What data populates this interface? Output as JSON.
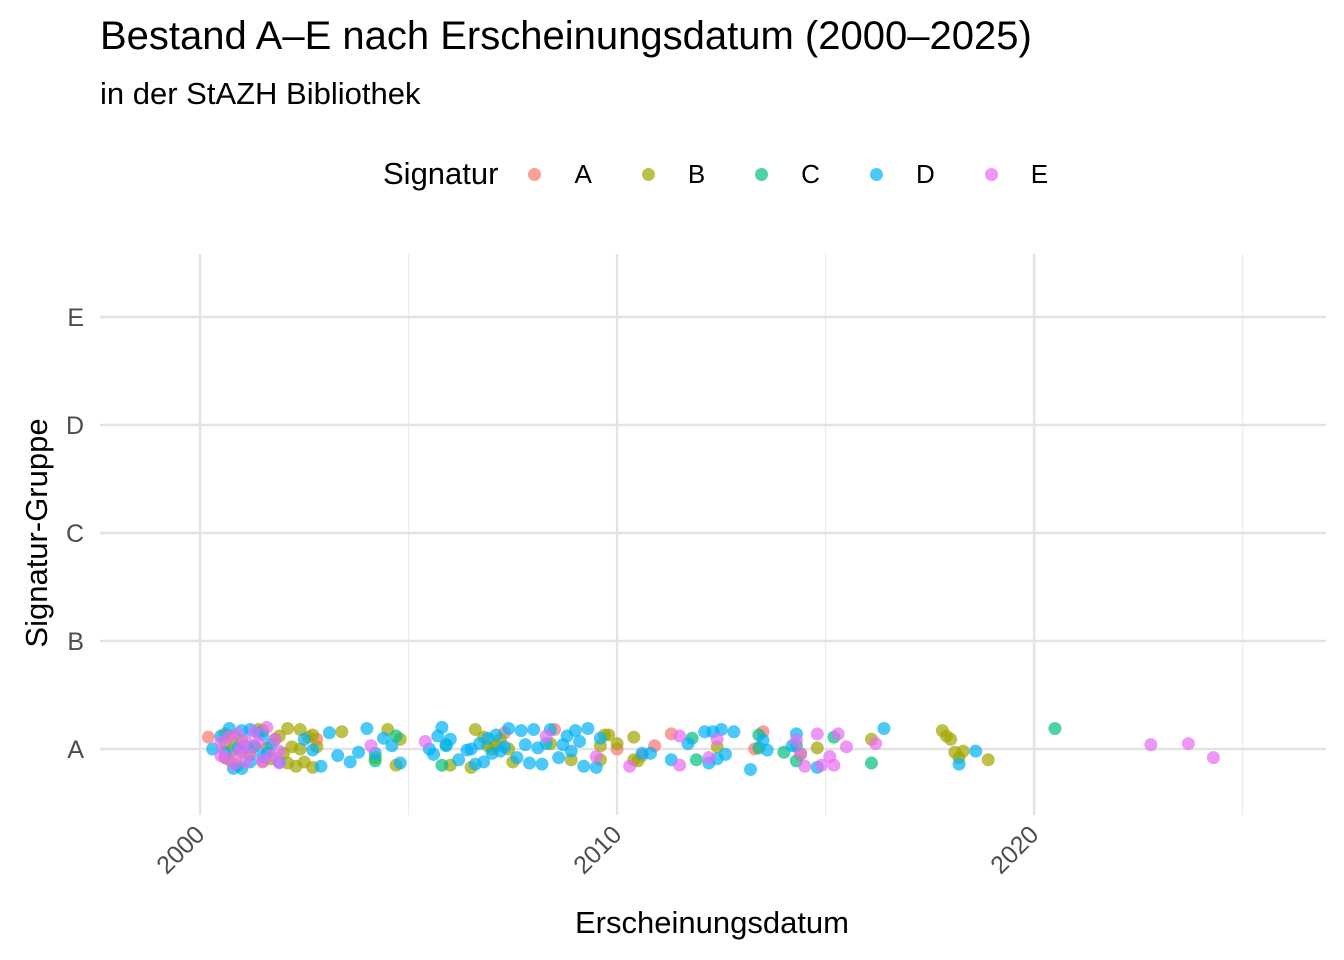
{
  "chart_data": {
    "type": "scatter",
    "title": "Bestand A–E nach Erscheinungsdatum (2000–2025)",
    "subtitle": "in der StAZH Bibliothek",
    "xlabel": "Erscheinungsdatum",
    "ylabel": "Signatur-Gruppe",
    "legend_title": "Signatur",
    "legend_position": "top",
    "grid": true,
    "xlim": [
      1997.6,
      2027.0
    ],
    "x_ticks": [
      2000,
      2010,
      2020
    ],
    "x_tick_labels": [
      "2000",
      "2010",
      "2020"
    ],
    "categories": [
      "A",
      "B",
      "C",
      "D",
      "E"
    ],
    "series": [
      {
        "name": "A",
        "color": "#F8766D",
        "points": [
          {
            "x": 2000.2,
            "y": 0.11
          },
          {
            "x": 2001.5,
            "y": -0.12
          },
          {
            "x": 2002.8,
            "y": 0.09
          },
          {
            "x": 2007.3,
            "y": 0.15
          },
          {
            "x": 2008.5,
            "y": 0.18
          },
          {
            "x": 2010.0,
            "y": 0.0
          },
          {
            "x": 2010.6,
            "y": -0.06
          },
          {
            "x": 2010.9,
            "y": 0.03
          },
          {
            "x": 2011.3,
            "y": 0.14
          },
          {
            "x": 2013.3,
            "y": 0.0
          },
          {
            "x": 2013.5,
            "y": 0.16
          }
        ]
      },
      {
        "name": "B",
        "color": "#A3A500",
        "points": [
          {
            "x": 2000.6,
            "y": 0.14
          },
          {
            "x": 2000.6,
            "y": 0.05
          },
          {
            "x": 2000.6,
            "y": -0.08
          },
          {
            "x": 2000.7,
            "y": -0.1
          },
          {
            "x": 2000.8,
            "y": 0.12
          },
          {
            "x": 2000.8,
            "y": 0.0
          },
          {
            "x": 2000.9,
            "y": -0.15
          },
          {
            "x": 2001.0,
            "y": 0.08
          },
          {
            "x": 2001.0,
            "y": -0.03
          },
          {
            "x": 2001.2,
            "y": -0.05
          },
          {
            "x": 2001.3,
            "y": 0.03
          },
          {
            "x": 2001.4,
            "y": 0.18
          },
          {
            "x": 2001.5,
            "y": 0.17
          },
          {
            "x": 2001.6,
            "y": 0.01
          },
          {
            "x": 2001.7,
            "y": -0.09
          },
          {
            "x": 2001.8,
            "y": 0.09
          },
          {
            "x": 2001.9,
            "y": 0.12
          },
          {
            "x": 2002.0,
            "y": -0.04
          },
          {
            "x": 2002.1,
            "y": -0.13
          },
          {
            "x": 2002.1,
            "y": 0.19
          },
          {
            "x": 2002.2,
            "y": 0.02
          },
          {
            "x": 2002.3,
            "y": -0.16
          },
          {
            "x": 2002.4,
            "y": 0.18
          },
          {
            "x": 2002.4,
            "y": 0.0
          },
          {
            "x": 2002.5,
            "y": -0.12
          },
          {
            "x": 2002.6,
            "y": 0.11
          },
          {
            "x": 2002.7,
            "y": -0.17
          },
          {
            "x": 2002.7,
            "y": 0.13
          },
          {
            "x": 2002.8,
            "y": 0.02
          },
          {
            "x": 2003.4,
            "y": 0.16
          },
          {
            "x": 2004.2,
            "y": -0.08
          },
          {
            "x": 2004.5,
            "y": 0.18
          },
          {
            "x": 2004.7,
            "y": -0.15
          },
          {
            "x": 2004.8,
            "y": 0.09
          },
          {
            "x": 2006.0,
            "y": -0.15
          },
          {
            "x": 2006.5,
            "y": -0.17
          },
          {
            "x": 2006.6,
            "y": 0.18
          },
          {
            "x": 2006.8,
            "y": 0.11
          },
          {
            "x": 2006.9,
            "y": 0.03
          },
          {
            "x": 2007.0,
            "y": 0.0
          },
          {
            "x": 2007.1,
            "y": 0.03
          },
          {
            "x": 2007.2,
            "y": 0.09
          },
          {
            "x": 2007.4,
            "y": 0.0
          },
          {
            "x": 2007.5,
            "y": -0.12
          },
          {
            "x": 2008.4,
            "y": 0.05
          },
          {
            "x": 2008.9,
            "y": -0.1
          },
          {
            "x": 2009.6,
            "y": 0.03
          },
          {
            "x": 2009.6,
            "y": -0.1
          },
          {
            "x": 2009.7,
            "y": 0.13
          },
          {
            "x": 2009.8,
            "y": 0.13
          },
          {
            "x": 2010.0,
            "y": 0.05
          },
          {
            "x": 2010.4,
            "y": 0.11
          },
          {
            "x": 2010.4,
            "y": -0.1
          },
          {
            "x": 2010.5,
            "y": -0.11
          },
          {
            "x": 2012.4,
            "y": 0.02
          },
          {
            "x": 2014.4,
            "y": -0.05
          },
          {
            "x": 2014.8,
            "y": 0.01
          },
          {
            "x": 2016.1,
            "y": 0.09
          },
          {
            "x": 2017.8,
            "y": 0.17
          },
          {
            "x": 2017.9,
            "y": 0.12
          },
          {
            "x": 2018.0,
            "y": 0.09
          },
          {
            "x": 2018.1,
            "y": -0.03
          },
          {
            "x": 2018.2,
            "y": -0.08
          },
          {
            "x": 2018.3,
            "y": -0.02
          },
          {
            "x": 2018.9,
            "y": -0.1
          }
        ]
      },
      {
        "name": "C",
        "color": "#00BF7D",
        "points": [
          {
            "x": 2004.2,
            "y": -0.11
          },
          {
            "x": 2004.7,
            "y": 0.12
          },
          {
            "x": 2005.8,
            "y": -0.15
          },
          {
            "x": 2005.9,
            "y": 0.04
          },
          {
            "x": 2011.8,
            "y": 0.1
          },
          {
            "x": 2011.9,
            "y": -0.1
          },
          {
            "x": 2013.4,
            "y": 0.13
          },
          {
            "x": 2013.4,
            "y": 0.01
          },
          {
            "x": 2014.0,
            "y": -0.03
          },
          {
            "x": 2014.3,
            "y": 0.03
          },
          {
            "x": 2014.3,
            "y": -0.11
          },
          {
            "x": 2015.2,
            "y": 0.11
          },
          {
            "x": 2016.1,
            "y": -0.13
          },
          {
            "x": 2020.5,
            "y": 0.19
          }
        ]
      },
      {
        "name": "D",
        "color": "#00B0F6",
        "points": [
          {
            "x": 2000.3,
            "y": 0.0
          },
          {
            "x": 2000.5,
            "y": 0.12
          },
          {
            "x": 2000.6,
            "y": -0.03
          },
          {
            "x": 2000.7,
            "y": 0.19
          },
          {
            "x": 2000.8,
            "y": -0.18
          },
          {
            "x": 2000.9,
            "y": 0.01
          },
          {
            "x": 2001.0,
            "y": 0.17
          },
          {
            "x": 2001.0,
            "y": -0.18
          },
          {
            "x": 2001.1,
            "y": 0.02
          },
          {
            "x": 2001.2,
            "y": 0.18
          },
          {
            "x": 2001.2,
            "y": -0.12
          },
          {
            "x": 2001.3,
            "y": 0.02
          },
          {
            "x": 2001.4,
            "y": 0.15
          },
          {
            "x": 2001.5,
            "y": -0.07
          },
          {
            "x": 2001.5,
            "y": 0.13
          },
          {
            "x": 2001.6,
            "y": -0.04
          },
          {
            "x": 2001.7,
            "y": 0.04
          },
          {
            "x": 2001.9,
            "y": -0.12
          },
          {
            "x": 2002.5,
            "y": 0.09
          },
          {
            "x": 2002.7,
            "y": -0.01
          },
          {
            "x": 2002.9,
            "y": -0.16
          },
          {
            "x": 2003.1,
            "y": 0.15
          },
          {
            "x": 2003.3,
            "y": -0.06
          },
          {
            "x": 2003.6,
            "y": -0.12
          },
          {
            "x": 2003.8,
            "y": -0.03
          },
          {
            "x": 2004.0,
            "y": 0.19
          },
          {
            "x": 2004.2,
            "y": -0.04
          },
          {
            "x": 2004.4,
            "y": 0.1
          },
          {
            "x": 2004.6,
            "y": 0.03
          },
          {
            "x": 2004.8,
            "y": -0.13
          },
          {
            "x": 2005.5,
            "y": 0.0
          },
          {
            "x": 2005.6,
            "y": -0.05
          },
          {
            "x": 2005.7,
            "y": 0.12
          },
          {
            "x": 2005.8,
            "y": 0.2
          },
          {
            "x": 2005.9,
            "y": 0.03
          },
          {
            "x": 2006.0,
            "y": 0.09
          },
          {
            "x": 2006.2,
            "y": -0.1
          },
          {
            "x": 2006.4,
            "y": -0.01
          },
          {
            "x": 2006.5,
            "y": 0.0
          },
          {
            "x": 2006.6,
            "y": -0.14
          },
          {
            "x": 2006.7,
            "y": 0.05
          },
          {
            "x": 2006.8,
            "y": -0.12
          },
          {
            "x": 2006.9,
            "y": 0.1
          },
          {
            "x": 2007.0,
            "y": -0.04
          },
          {
            "x": 2007.1,
            "y": 0.13
          },
          {
            "x": 2007.2,
            "y": -0.02
          },
          {
            "x": 2007.3,
            "y": 0.02
          },
          {
            "x": 2007.4,
            "y": 0.19
          },
          {
            "x": 2007.6,
            "y": -0.08
          },
          {
            "x": 2007.7,
            "y": 0.17
          },
          {
            "x": 2007.8,
            "y": 0.04
          },
          {
            "x": 2007.9,
            "y": -0.13
          },
          {
            "x": 2008.0,
            "y": 0.18
          },
          {
            "x": 2008.1,
            "y": 0.01
          },
          {
            "x": 2008.2,
            "y": -0.14
          },
          {
            "x": 2008.3,
            "y": 0.05
          },
          {
            "x": 2008.4,
            "y": 0.18
          },
          {
            "x": 2008.6,
            "y": -0.08
          },
          {
            "x": 2008.7,
            "y": 0.04
          },
          {
            "x": 2008.8,
            "y": 0.12
          },
          {
            "x": 2008.9,
            "y": -0.02
          },
          {
            "x": 2009.0,
            "y": 0.17
          },
          {
            "x": 2009.1,
            "y": 0.07
          },
          {
            "x": 2009.2,
            "y": -0.16
          },
          {
            "x": 2009.3,
            "y": 0.19
          },
          {
            "x": 2009.5,
            "y": -0.17
          },
          {
            "x": 2009.6,
            "y": 0.1
          },
          {
            "x": 2010.6,
            "y": -0.04
          },
          {
            "x": 2010.8,
            "y": -0.04
          },
          {
            "x": 2011.3,
            "y": -0.1
          },
          {
            "x": 2011.7,
            "y": 0.05
          },
          {
            "x": 2012.1,
            "y": 0.16
          },
          {
            "x": 2012.2,
            "y": -0.13
          },
          {
            "x": 2012.3,
            "y": 0.16
          },
          {
            "x": 2012.4,
            "y": -0.09
          },
          {
            "x": 2012.5,
            "y": 0.18
          },
          {
            "x": 2012.6,
            "y": -0.05
          },
          {
            "x": 2012.8,
            "y": 0.16
          },
          {
            "x": 2013.2,
            "y": -0.19
          },
          {
            "x": 2013.5,
            "y": 0.08
          },
          {
            "x": 2013.6,
            "y": -0.01
          },
          {
            "x": 2014.2,
            "y": 0.03
          },
          {
            "x": 2014.3,
            "y": 0.14
          },
          {
            "x": 2014.8,
            "y": -0.17
          },
          {
            "x": 2016.4,
            "y": 0.19
          },
          {
            "x": 2018.2,
            "y": -0.14
          },
          {
            "x": 2018.6,
            "y": -0.02
          }
        ]
      },
      {
        "name": "E",
        "color": "#E76BF3",
        "points": [
          {
            "x": 2000.5,
            "y": 0.06
          },
          {
            "x": 2000.5,
            "y": -0.06
          },
          {
            "x": 2000.6,
            "y": -0.08
          },
          {
            "x": 2000.7,
            "y": 0.11
          },
          {
            "x": 2000.8,
            "y": -0.14
          },
          {
            "x": 2000.9,
            "y": 0.14
          },
          {
            "x": 2000.9,
            "y": -0.05
          },
          {
            "x": 2001.0,
            "y": 0.02
          },
          {
            "x": 2001.1,
            "y": -0.12
          },
          {
            "x": 2001.1,
            "y": 0.07
          },
          {
            "x": 2001.2,
            "y": -0.04
          },
          {
            "x": 2001.3,
            "y": 0.16
          },
          {
            "x": 2001.4,
            "y": 0.06
          },
          {
            "x": 2001.5,
            "y": -0.11
          },
          {
            "x": 2001.6,
            "y": 0.2
          },
          {
            "x": 2001.7,
            "y": -0.06
          },
          {
            "x": 2001.8,
            "y": 0.09
          },
          {
            "x": 2001.9,
            "y": -0.13
          },
          {
            "x": 2001.9,
            "y": -0.02
          },
          {
            "x": 2004.1,
            "y": 0.03
          },
          {
            "x": 2005.4,
            "y": 0.07
          },
          {
            "x": 2008.3,
            "y": 0.12
          },
          {
            "x": 2009.5,
            "y": -0.07
          },
          {
            "x": 2010.3,
            "y": -0.16
          },
          {
            "x": 2011.5,
            "y": 0.12
          },
          {
            "x": 2011.5,
            "y": -0.15
          },
          {
            "x": 2012.2,
            "y": -0.08
          },
          {
            "x": 2012.4,
            "y": 0.09
          },
          {
            "x": 2014.3,
            "y": 0.08
          },
          {
            "x": 2014.4,
            "y": -0.04
          },
          {
            "x": 2014.5,
            "y": -0.16
          },
          {
            "x": 2014.8,
            "y": 0.14
          },
          {
            "x": 2014.9,
            "y": -0.15
          },
          {
            "x": 2015.1,
            "y": -0.07
          },
          {
            "x": 2015.2,
            "y": -0.15
          },
          {
            "x": 2015.3,
            "y": 0.14
          },
          {
            "x": 2015.5,
            "y": 0.02
          },
          {
            "x": 2016.2,
            "y": 0.05
          },
          {
            "x": 2022.8,
            "y": 0.04
          },
          {
            "x": 2023.7,
            "y": 0.05
          },
          {
            "x": 2024.3,
            "y": -0.08
          }
        ]
      }
    ]
  }
}
